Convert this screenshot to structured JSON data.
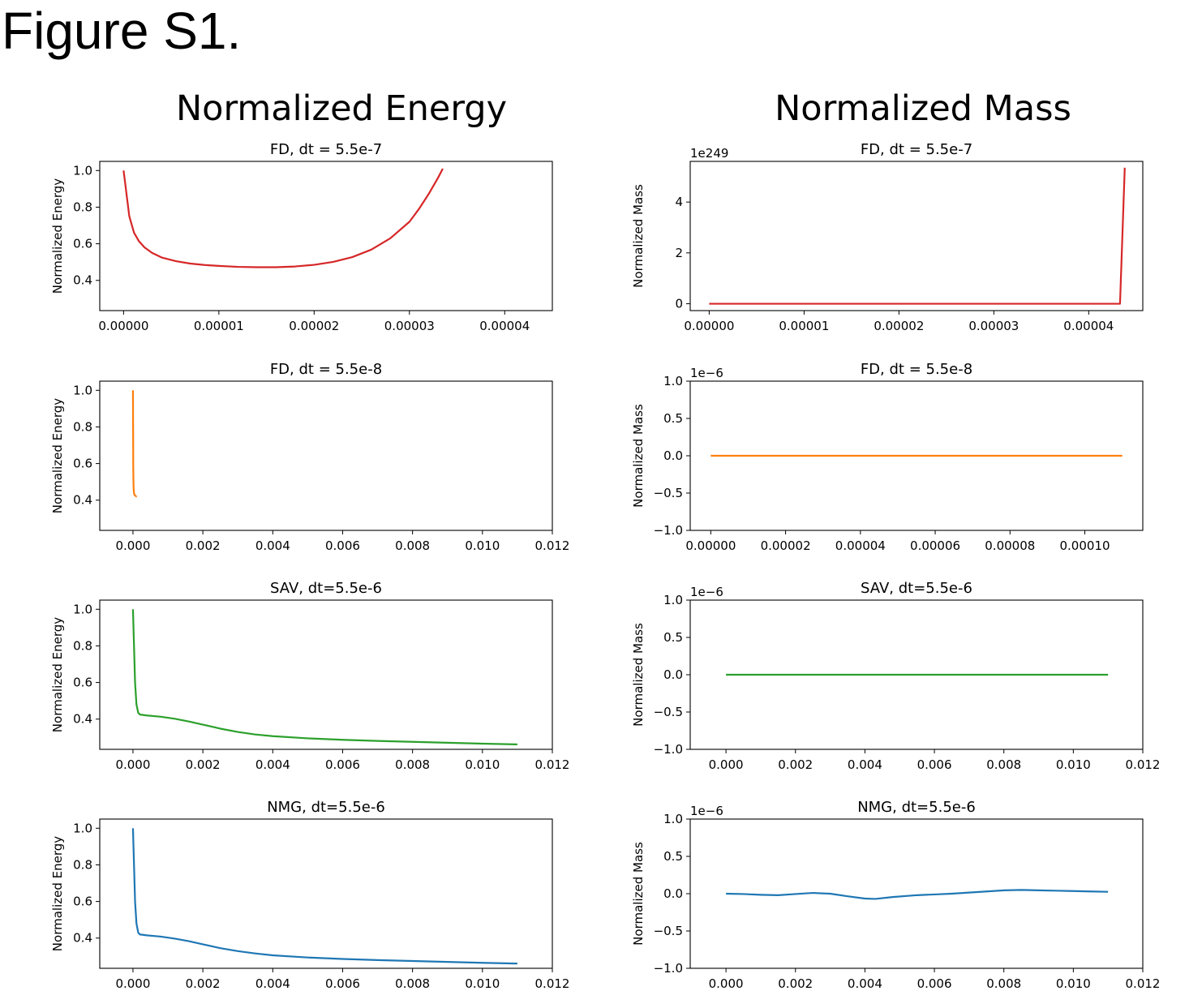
{
  "figure_title": "Figure S1.",
  "column_titles": [
    "Normalized Energy",
    "Normalized Mass"
  ],
  "colors": {
    "red": "#d62728",
    "orange": "#ff7f0e",
    "green": "#2ca02c",
    "blue": "#1f77b4"
  },
  "chart_data": [
    {
      "type": "line",
      "title": "FD, dt = 5.5e-7",
      "xlabel": "",
      "ylabel": "Normalized Energy",
      "color": "red",
      "xlim": [
        -2.5e-06,
        4.5e-05
      ],
      "ylim": [
        0.235,
        1.05
      ],
      "xticks": [
        "0.00000",
        "0.00001",
        "0.00002",
        "0.00003",
        "0.00004"
      ],
      "xtick_values": [
        0,
        1e-05,
        2e-05,
        3e-05,
        4e-05
      ],
      "yticks": [
        "0.4",
        "0.6",
        "0.8",
        "1.0"
      ],
      "ytick_values": [
        0.4,
        0.6,
        0.8,
        1.0
      ],
      "series": [
        {
          "x": [
            0,
            6e-07,
            1.1e-06,
            1.6e-06,
            2.2e-06,
            3e-06,
            4e-06,
            5.5e-06,
            7e-06,
            8.5e-06,
            1e-05,
            1.2e-05,
            1.4e-05,
            1.6e-05,
            1.8e-05,
            2e-05,
            2.2e-05,
            2.4e-05,
            2.6e-05,
            2.8e-05,
            3e-05,
            3.1e-05,
            3.2e-05,
            3.3e-05,
            3.35e-05
          ],
          "y": [
            1.0,
            0.75,
            0.66,
            0.615,
            0.58,
            0.55,
            0.525,
            0.505,
            0.492,
            0.484,
            0.479,
            0.474,
            0.472,
            0.472,
            0.476,
            0.485,
            0.501,
            0.527,
            0.568,
            0.63,
            0.72,
            0.79,
            0.87,
            0.96,
            1.01
          ]
        }
      ]
    },
    {
      "type": "line",
      "title": "FD, dt = 5.5e-8",
      "xlabel": "",
      "ylabel": "Normalized Energy",
      "color": "orange",
      "xlim": [
        -0.00095,
        0.012
      ],
      "ylim": [
        0.235,
        1.05
      ],
      "xticks": [
        "0.000",
        "0.002",
        "0.004",
        "0.006",
        "0.008",
        "0.010",
        "0.012"
      ],
      "xtick_values": [
        0,
        0.002,
        0.004,
        0.006,
        0.008,
        0.01,
        0.012
      ],
      "yticks": [
        "0.4",
        "0.6",
        "0.8",
        "1.0"
      ],
      "ytick_values": [
        0.4,
        0.6,
        0.8,
        1.0
      ],
      "series": [
        {
          "x": [
            0,
            4e-06,
            8e-06,
            1.2e-05,
            1.8e-05,
            2.5e-05,
            4e-05,
            6e-05,
            8e-05,
            0.0001,
            0.00011
          ],
          "y": [
            1.0,
            0.8,
            0.6,
            0.52,
            0.47,
            0.445,
            0.43,
            0.425,
            0.423,
            0.42,
            0.42
          ]
        }
      ]
    },
    {
      "type": "line",
      "title": "SAV, dt=5.5e-6",
      "xlabel": "",
      "ylabel": "Normalized Energy",
      "color": "green",
      "xlim": [
        -0.00095,
        0.012
      ],
      "ylim": [
        0.235,
        1.05
      ],
      "xticks": [
        "0.000",
        "0.002",
        "0.004",
        "0.006",
        "0.008",
        "0.010",
        "0.012"
      ],
      "xtick_values": [
        0,
        0.002,
        0.004,
        0.006,
        0.008,
        0.01,
        0.012
      ],
      "yticks": [
        "0.4",
        "0.6",
        "0.8",
        "1.0"
      ],
      "ytick_values": [
        0.4,
        0.6,
        0.8,
        1.0
      ],
      "series": [
        {
          "x": [
            0,
            3e-05,
            6e-05,
            0.0001,
            0.00015,
            0.0002,
            0.0004,
            0.0008,
            0.0012,
            0.0016,
            0.002,
            0.0025,
            0.003,
            0.0035,
            0.004,
            0.005,
            0.006,
            0.007,
            0.008,
            0.009,
            0.01,
            0.011
          ],
          "y": [
            1.0,
            0.8,
            0.6,
            0.48,
            0.435,
            0.425,
            0.42,
            0.413,
            0.402,
            0.387,
            0.37,
            0.348,
            0.33,
            0.316,
            0.307,
            0.295,
            0.287,
            0.281,
            0.276,
            0.271,
            0.266,
            0.262
          ]
        }
      ]
    },
    {
      "type": "line",
      "title": "NMG, dt=5.5e-6",
      "xlabel": "",
      "ylabel": "Normalized Energy",
      "color": "blue",
      "xlim": [
        -0.00095,
        0.012
      ],
      "ylim": [
        0.235,
        1.05
      ],
      "xticks": [
        "0.000",
        "0.002",
        "0.004",
        "0.006",
        "0.008",
        "0.010",
        "0.012"
      ],
      "xtick_values": [
        0,
        0.002,
        0.004,
        0.006,
        0.008,
        0.01,
        0.012
      ],
      "yticks": [
        "0.4",
        "0.6",
        "0.8",
        "1.0"
      ],
      "ytick_values": [
        0.4,
        0.6,
        0.8,
        1.0
      ],
      "series": [
        {
          "x": [
            0,
            3e-05,
            6e-05,
            0.0001,
            0.00015,
            0.0002,
            0.0004,
            0.0008,
            0.0012,
            0.0016,
            0.002,
            0.0025,
            0.003,
            0.0035,
            0.004,
            0.005,
            0.006,
            0.007,
            0.008,
            0.009,
            0.01,
            0.011
          ],
          "y": [
            1.0,
            0.8,
            0.6,
            0.48,
            0.43,
            0.42,
            0.415,
            0.408,
            0.397,
            0.383,
            0.366,
            0.345,
            0.329,
            0.316,
            0.306,
            0.294,
            0.286,
            0.28,
            0.275,
            0.27,
            0.265,
            0.261
          ]
        }
      ]
    },
    {
      "type": "line",
      "title": "FD, dt = 5.5e-7",
      "xlabel": "",
      "ylabel": "Normalized Mass",
      "offset_text": "1e249",
      "color": "red",
      "xlim": [
        -2e-06,
        4.57e-05
      ],
      "ylim": [
        -0.27,
        5.6
      ],
      "xticks": [
        "0.00000",
        "0.00001",
        "0.00002",
        "0.00003",
        "0.00004"
      ],
      "xtick_values": [
        0,
        1e-05,
        2e-05,
        3e-05,
        4e-05
      ],
      "yticks": [
        "0",
        "2",
        "4"
      ],
      "ytick_values": [
        0,
        2,
        4
      ],
      "series": [
        {
          "x": [
            0,
            1e-05,
            2e-05,
            3e-05,
            4e-05,
            4.33e-05,
            4.38e-05
          ],
          "y": [
            0,
            0,
            0,
            0,
            0,
            0,
            5.35
          ]
        }
      ]
    },
    {
      "type": "line",
      "title": "FD, dt = 5.5e-8",
      "xlabel": "",
      "ylabel": "Normalized Mass",
      "offset_text": "1e−6",
      "color": "orange",
      "xlim": [
        -5.5e-06,
        0.0001155
      ],
      "ylim": [
        -1.0,
        1.0
      ],
      "xticks": [
        "0.00000",
        "0.00002",
        "0.00004",
        "0.00006",
        "0.00008",
        "0.00010"
      ],
      "xtick_values": [
        0,
        2e-05,
        4e-05,
        6e-05,
        8e-05,
        0.0001
      ],
      "yticks": [
        "−1.0",
        "−0.5",
        "0.0",
        "0.5",
        "1.0"
      ],
      "ytick_values": [
        -1.0,
        -0.5,
        0.0,
        0.5,
        1.0
      ],
      "series": [
        {
          "x": [
            0,
            0.00011
          ],
          "y": [
            0,
            0
          ]
        }
      ]
    },
    {
      "type": "line",
      "title": "SAV, dt=5.5e-6",
      "xlabel": "",
      "ylabel": "Normalized Mass",
      "offset_text": "1e−6",
      "color": "green",
      "xlim": [
        -0.00103,
        0.012
      ],
      "ylim": [
        -1.0,
        1.0
      ],
      "xticks": [
        "0.000",
        "0.002",
        "0.004",
        "0.006",
        "0.008",
        "0.010",
        "0.012"
      ],
      "xtick_values": [
        0,
        0.002,
        0.004,
        0.006,
        0.008,
        0.01,
        0.012
      ],
      "yticks": [
        "−1.0",
        "−0.5",
        "0.0",
        "0.5",
        "1.0"
      ],
      "ytick_values": [
        -1.0,
        -0.5,
        0.0,
        0.5,
        1.0
      ],
      "series": [
        {
          "x": [
            0,
            0.011
          ],
          "y": [
            0,
            0
          ]
        }
      ]
    },
    {
      "type": "line",
      "title": "NMG, dt=5.5e-6",
      "xlabel": "",
      "ylabel": "Normalized Mass",
      "offset_text": "1e−6",
      "color": "blue",
      "xlim": [
        -0.00103,
        0.012
      ],
      "ylim": [
        -1.0,
        1.0
      ],
      "xticks": [
        "0.000",
        "0.002",
        "0.004",
        "0.006",
        "0.008",
        "0.010",
        "0.012"
      ],
      "xtick_values": [
        0,
        0.002,
        0.004,
        0.006,
        0.008,
        0.01,
        0.012
      ],
      "yticks": [
        "−1.0",
        "−0.5",
        "0.0",
        "0.5",
        "1.0"
      ],
      "ytick_values": [
        -1.0,
        -0.5,
        0.0,
        0.5,
        1.0
      ],
      "series": [
        {
          "x": [
            0,
            0.0005,
            0.001,
            0.0015,
            0.002,
            0.0025,
            0.003,
            0.0035,
            0.004,
            0.0043,
            0.0048,
            0.0055,
            0.006,
            0.0065,
            0.007,
            0.0075,
            0.008,
            0.0085,
            0.009,
            0.0095,
            0.01,
            0.0105,
            0.011
          ],
          "y": [
            0,
            -0.005,
            -0.015,
            -0.02,
            -0.005,
            0.01,
            0.0,
            -0.035,
            -0.065,
            -0.07,
            -0.045,
            -0.02,
            -0.01,
            0.0,
            0.015,
            0.03,
            0.045,
            0.05,
            0.045,
            0.04,
            0.035,
            0.03,
            0.025
          ]
        }
      ]
    }
  ]
}
